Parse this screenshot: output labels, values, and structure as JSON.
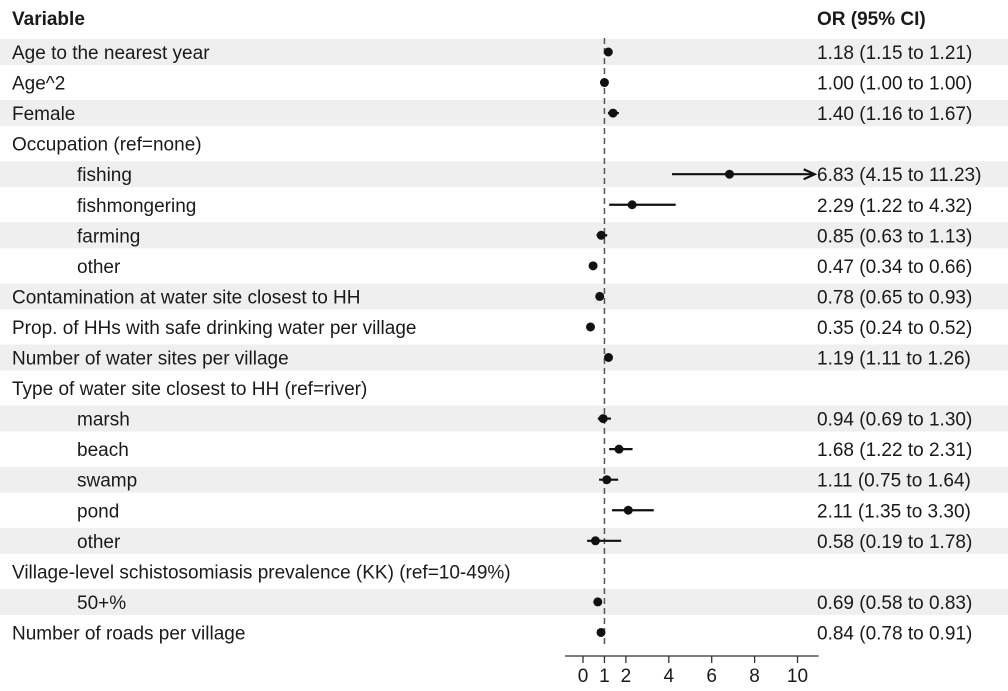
{
  "chart_data": {
    "type": "forest",
    "headers": {
      "variable": "Variable",
      "or_ci": "OR (95% CI)"
    },
    "reference_line": 1,
    "xlim": [
      0,
      10.8
    ],
    "x_ticks": [
      0,
      1,
      2,
      4,
      6,
      8,
      10
    ],
    "rows": [
      {
        "label": "Age to the nearest year",
        "indent": false,
        "or": 1.18,
        "lower": 1.15,
        "upper": 1.21,
        "ci_text": "1.18 (1.15 to 1.21)"
      },
      {
        "label": "Age^2",
        "indent": false,
        "or": 1.0,
        "lower": 1.0,
        "upper": 1.0,
        "ci_text": "1.00 (1.00 to 1.00)"
      },
      {
        "label": "Female",
        "indent": false,
        "or": 1.4,
        "lower": 1.16,
        "upper": 1.67,
        "ci_text": "1.40 (1.16 to 1.67)"
      },
      {
        "label": "Occupation (ref=none)",
        "indent": false,
        "or": null,
        "lower": null,
        "upper": null,
        "ci_text": ""
      },
      {
        "label": "fishing",
        "indent": true,
        "or": 6.83,
        "lower": 4.15,
        "upper": 11.23,
        "ci_text": "6.83 (4.15 to 11.23)"
      },
      {
        "label": "fishmongering",
        "indent": true,
        "or": 2.29,
        "lower": 1.22,
        "upper": 4.32,
        "ci_text": "2.29 (1.22 to 4.32)"
      },
      {
        "label": "farming",
        "indent": true,
        "or": 0.85,
        "lower": 0.63,
        "upper": 1.13,
        "ci_text": "0.85 (0.63 to 1.13)"
      },
      {
        "label": "other",
        "indent": true,
        "or": 0.47,
        "lower": 0.34,
        "upper": 0.66,
        "ci_text": "0.47 (0.34 to 0.66)"
      },
      {
        "label": "Contamination at water site closest to HH",
        "indent": false,
        "or": 0.78,
        "lower": 0.65,
        "upper": 0.93,
        "ci_text": "0.78 (0.65 to 0.93)"
      },
      {
        "label": "Prop. of HHs with safe drinking water per village",
        "indent": false,
        "or": 0.35,
        "lower": 0.24,
        "upper": 0.52,
        "ci_text": "0.35 (0.24 to 0.52)"
      },
      {
        "label": "Number of water sites per village",
        "indent": false,
        "or": 1.19,
        "lower": 1.11,
        "upper": 1.26,
        "ci_text": "1.19 (1.11 to 1.26)"
      },
      {
        "label": "Type of water site closest to HH (ref=river)",
        "indent": false,
        "or": null,
        "lower": null,
        "upper": null,
        "ci_text": ""
      },
      {
        "label": "marsh",
        "indent": true,
        "or": 0.94,
        "lower": 0.69,
        "upper": 1.3,
        "ci_text": "0.94 (0.69 to 1.30)"
      },
      {
        "label": "beach",
        "indent": true,
        "or": 1.68,
        "lower": 1.22,
        "upper": 2.31,
        "ci_text": "1.68 (1.22 to 2.31)"
      },
      {
        "label": "swamp",
        "indent": true,
        "or": 1.11,
        "lower": 0.75,
        "upper": 1.64,
        "ci_text": "1.11 (0.75 to 1.64)"
      },
      {
        "label": "pond",
        "indent": true,
        "or": 2.11,
        "lower": 1.35,
        "upper": 3.3,
        "ci_text": "2.11 (1.35 to 3.30)"
      },
      {
        "label": "other",
        "indent": true,
        "or": 0.58,
        "lower": 0.19,
        "upper": 1.78,
        "ci_text": "0.58 (0.19 to 1.78)"
      },
      {
        "label": "Village-level schistosomiasis prevalence (KK) (ref=10-49%)",
        "indent": false,
        "or": null,
        "lower": null,
        "upper": null,
        "ci_text": ""
      },
      {
        "label": "50+%",
        "indent": true,
        "or": 0.69,
        "lower": 0.58,
        "upper": 0.83,
        "ci_text": "0.69 (0.58 to 0.83)"
      },
      {
        "label": "Number of roads per village",
        "indent": false,
        "or": 0.84,
        "lower": 0.78,
        "upper": 0.91,
        "ci_text": "0.84 (0.78 to 0.91)"
      }
    ],
    "colors": {
      "stripe": "#efefef",
      "point": "#111111",
      "ref_line": "#555555"
    }
  }
}
